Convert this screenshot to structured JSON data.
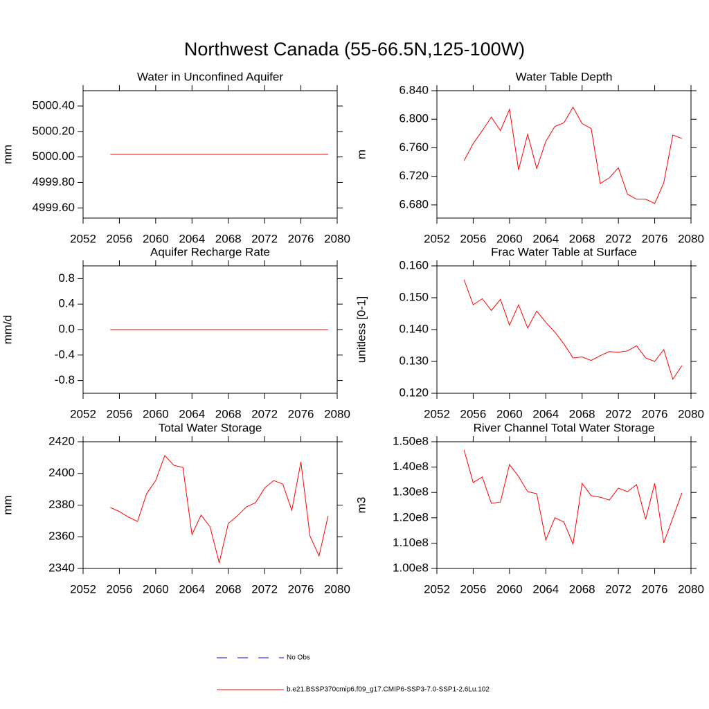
{
  "title": "Northwest Canada (55-66.5N,125-100W)",
  "legend": [
    {
      "name": "No Obs",
      "color": "#0000ff",
      "dash": "dashed"
    },
    {
      "name": "b.e21.BSSP370cmip6.f09_g17.CMIP6-SSP3-7.0-SSP1-2.6Lu.102",
      "color": "#ff0000",
      "dash": "solid"
    }
  ],
  "chart_data": [
    {
      "type": "line",
      "title": "Water in Unconfined Aquifer",
      "ylabel": "mm",
      "x": [
        2055,
        2056,
        2057,
        2058,
        2059,
        2060,
        2061,
        2062,
        2063,
        2064,
        2065,
        2066,
        2067,
        2068,
        2069,
        2070,
        2071,
        2072,
        2073,
        2074,
        2075,
        2076,
        2077,
        2078,
        2079
      ],
      "xlim": [
        2052,
        2080
      ],
      "xticks": [
        2052,
        2056,
        2060,
        2064,
        2068,
        2072,
        2076,
        2080
      ],
      "ylim": [
        4999.52,
        5000.52
      ],
      "yticks": [
        {
          "value": 4999.6,
          "label": "4999.60"
        },
        {
          "value": 4999.8,
          "label": "4999.80"
        },
        {
          "value": 5000.0,
          "label": "5000.00"
        },
        {
          "value": 5000.2,
          "label": "5000.20"
        },
        {
          "value": 5000.4,
          "label": "5000.40"
        }
      ],
      "series": [
        {
          "color": "#ff0000",
          "values": [
            5000.02,
            5000.02,
            5000.02,
            5000.02,
            5000.02,
            5000.02,
            5000.02,
            5000.02,
            5000.02,
            5000.02,
            5000.02,
            5000.02,
            5000.02,
            5000.02,
            5000.02,
            5000.02,
            5000.02,
            5000.02,
            5000.02,
            5000.02,
            5000.02,
            5000.02,
            5000.02,
            5000.02,
            5000.02
          ]
        }
      ]
    },
    {
      "type": "line",
      "title": "Water Table Depth",
      "ylabel": "m",
      "x": [
        2055,
        2056,
        2057,
        2058,
        2059,
        2060,
        2061,
        2062,
        2063,
        2064,
        2065,
        2066,
        2067,
        2068,
        2069,
        2070,
        2071,
        2072,
        2073,
        2074,
        2075,
        2076,
        2077,
        2078,
        2079
      ],
      "xlim": [
        2052,
        2080
      ],
      "xticks": [
        2052,
        2056,
        2060,
        2064,
        2068,
        2072,
        2076,
        2080
      ],
      "ylim": [
        6.6615,
        6.84
      ],
      "yticks": [
        {
          "value": 6.68,
          "label": "6.680"
        },
        {
          "value": 6.72,
          "label": "6.720"
        },
        {
          "value": 6.76,
          "label": "6.760"
        },
        {
          "value": 6.8,
          "label": "6.800"
        },
        {
          "value": 6.84,
          "label": "6.840"
        }
      ],
      "series": [
        {
          "color": "#ff0000",
          "values": [
            6.742,
            6.766,
            6.784,
            6.803,
            6.784,
            6.814,
            6.729,
            6.779,
            6.731,
            6.769,
            6.79,
            6.795,
            6.817,
            6.794,
            6.787,
            6.71,
            6.718,
            6.732,
            6.695,
            6.688,
            6.688,
            6.682,
            6.711,
            6.778,
            6.773
          ]
        }
      ]
    },
    {
      "type": "line",
      "title": "Aquifer Recharge Rate",
      "ylabel": "mm/d",
      "x": [
        2055,
        2056,
        2057,
        2058,
        2059,
        2060,
        2061,
        2062,
        2063,
        2064,
        2065,
        2066,
        2067,
        2068,
        2069,
        2070,
        2071,
        2072,
        2073,
        2074,
        2075,
        2076,
        2077,
        2078,
        2079
      ],
      "xlim": [
        2052,
        2080
      ],
      "xticks": [
        2052,
        2056,
        2060,
        2064,
        2068,
        2072,
        2076,
        2080
      ],
      "ylim": [
        -1,
        1
      ],
      "yticks": [
        -0.8,
        -0.4,
        {
          "value": 0,
          "label": "0.0"
        },
        0.4,
        0.8
      ],
      "series": [
        {
          "color": "#ff0000",
          "values": [
            0,
            0,
            0,
            0,
            0,
            0,
            0,
            0,
            0,
            0,
            0,
            0,
            0,
            0,
            0,
            0,
            0,
            0,
            0,
            0,
            0,
            0,
            0,
            0,
            0
          ]
        }
      ]
    },
    {
      "type": "line",
      "title": "Frac Water Table at Surface",
      "ylabel": "unitless [0-1]",
      "x": [
        2055,
        2056,
        2057,
        2058,
        2059,
        2060,
        2061,
        2062,
        2063,
        2064,
        2065,
        2066,
        2067,
        2068,
        2069,
        2070,
        2071,
        2072,
        2073,
        2074,
        2075,
        2076,
        2077,
        2078,
        2079
      ],
      "xlim": [
        2052,
        2080
      ],
      "xticks": [
        2052,
        2056,
        2060,
        2064,
        2068,
        2072,
        2076,
        2080
      ],
      "ylim": [
        0.12,
        0.16
      ],
      "yticks": [
        {
          "value": 0.12,
          "label": "0.120"
        },
        {
          "value": 0.13,
          "label": "0.130"
        },
        {
          "value": 0.14,
          "label": "0.140"
        },
        {
          "value": 0.15,
          "label": "0.150"
        },
        {
          "value": 0.16,
          "label": "0.160"
        }
      ],
      "series": [
        {
          "color": "#ff0000",
          "values": [
            0.1556,
            0.1478,
            0.1497,
            0.146,
            0.1495,
            0.1414,
            0.1478,
            0.1405,
            0.1458,
            0.1423,
            0.1392,
            0.1355,
            0.1311,
            0.1314,
            0.1303,
            0.1318,
            0.1331,
            0.1329,
            0.1333,
            0.1349,
            0.1311,
            0.13,
            0.1337,
            0.1244,
            0.1287
          ]
        }
      ]
    },
    {
      "type": "line",
      "title": "Total Water Storage",
      "ylabel": "mm",
      "x": [
        2055,
        2056,
        2057,
        2058,
        2059,
        2060,
        2061,
        2062,
        2063,
        2064,
        2065,
        2066,
        2067,
        2068,
        2069,
        2070,
        2071,
        2072,
        2073,
        2074,
        2075,
        2076,
        2077,
        2078,
        2079
      ],
      "xlim": [
        2052,
        2080
      ],
      "xticks": [
        2052,
        2056,
        2060,
        2064,
        2068,
        2072,
        2076,
        2080
      ],
      "ylim": [
        2340,
        2420
      ],
      "yticks": [
        2340,
        2360,
        2380,
        2400,
        2420
      ],
      "series": [
        {
          "color": "#ff0000",
          "values": [
            2378.5,
            2375.9,
            2372.4,
            2369.7,
            2387.2,
            2395.5,
            2411.3,
            2405.1,
            2403.8,
            2361.4,
            2373.7,
            2366.2,
            2343.5,
            2368.4,
            2373.2,
            2378.9,
            2381.5,
            2390.7,
            2395.5,
            2393.3,
            2376.7,
            2407.3,
            2360.5,
            2347.9,
            2373.2
          ]
        }
      ]
    },
    {
      "type": "line",
      "title": "River Channel Total Water Storage",
      "ylabel": "m3",
      "x": [
        2055,
        2056,
        2057,
        2058,
        2059,
        2060,
        2061,
        2062,
        2063,
        2064,
        2065,
        2066,
        2067,
        2068,
        2069,
        2070,
        2071,
        2072,
        2073,
        2074,
        2075,
        2076,
        2077,
        2078,
        2079
      ],
      "xlim": [
        2052,
        2080
      ],
      "xticks": [
        2052,
        2056,
        2060,
        2064,
        2068,
        2072,
        2076,
        2080
      ],
      "ylim": [
        100000000,
        150000000
      ],
      "yticks": [
        {
          "value": 100000000,
          "label": "1.00e8"
        },
        {
          "value": 110000000,
          "label": "1.10e8"
        },
        {
          "value": 120000000,
          "label": "1.20e8"
        },
        {
          "value": 130000000,
          "label": "1.30e8"
        },
        {
          "value": 140000000,
          "label": "1.40e8"
        },
        {
          "value": 150000000,
          "label": "1.50e8"
        }
      ],
      "series": [
        {
          "color": "#ff0000",
          "values": [
            146700000,
            133900000,
            136100000,
            125700000,
            126200000,
            141000000,
            136300000,
            130300000,
            129500000,
            111200000,
            120000000,
            118300000,
            109600000,
            133600000,
            128700000,
            128100000,
            127000000,
            131700000,
            130300000,
            133100000,
            119400000,
            133600000,
            110100000,
            120000000,
            129800000
          ]
        }
      ]
    }
  ]
}
